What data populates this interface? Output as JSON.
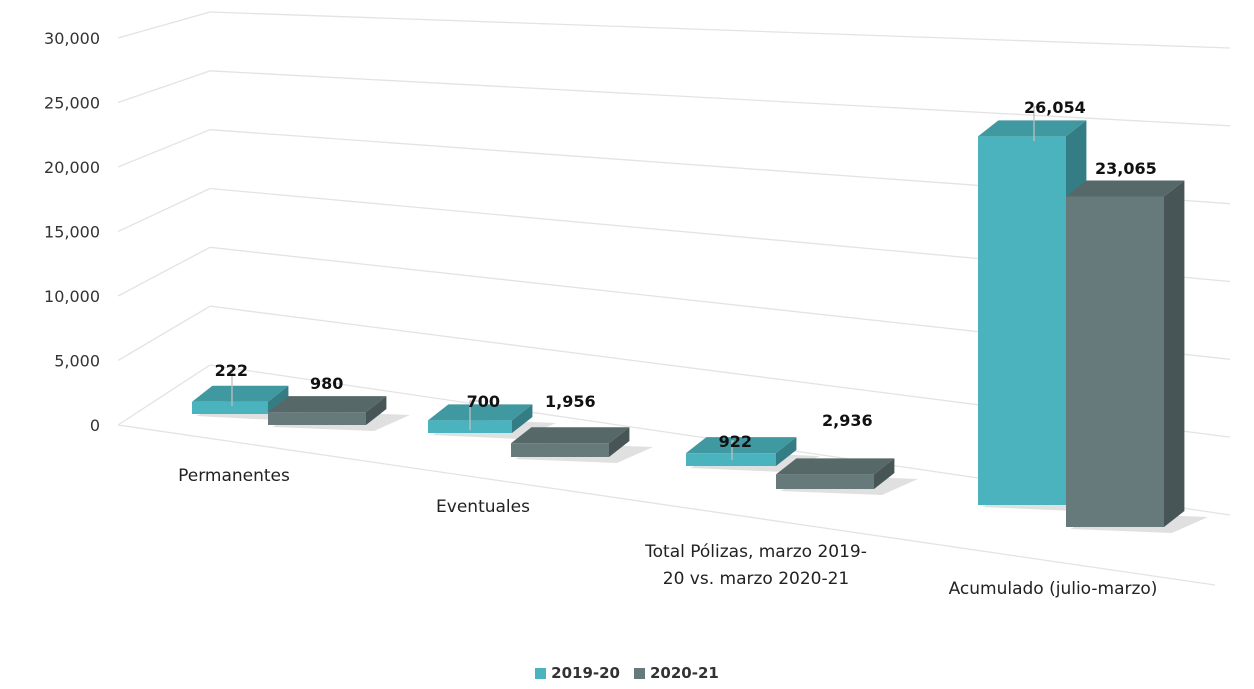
{
  "chart_data": {
    "type": "bar",
    "categories": [
      "Permanentes",
      "Eventuales",
      "Total Pólizas, marzo 2019-20 vs. marzo 2020-21",
      "Acumulado (julio-marzo)"
    ],
    "category_label_lines": [
      [
        "Permanentes"
      ],
      [
        "Eventuales"
      ],
      [
        "Total Pólizas, marzo 2019-",
        "20 vs. marzo 2020-21"
      ],
      [
        "Acumulado (julio-marzo)"
      ]
    ],
    "series": [
      {
        "name": "2019-20",
        "values": [
          222,
          700,
          922,
          26054
        ],
        "color": "#4bb3bd"
      },
      {
        "name": "2020-21",
        "values": [
          980,
          1956,
          2936,
          23065
        ],
        "color": "#667a7c"
      }
    ],
    "data_labels": [
      [
        "222",
        "700",
        "922",
        "26,054"
      ],
      [
        "980",
        "1,956",
        "2,936",
        "23,065"
      ]
    ],
    "y_ticks": [
      "0",
      "5,000",
      "10,000",
      "15,000",
      "20,000",
      "25,000",
      "30,000"
    ],
    "ylim": [
      0,
      30000
    ],
    "grid": true,
    "legend_position": "bottom",
    "style": "3d-clustered-bar"
  }
}
